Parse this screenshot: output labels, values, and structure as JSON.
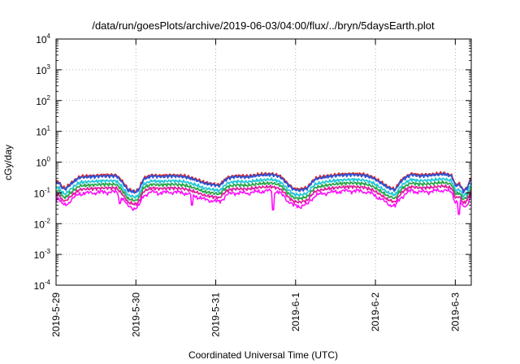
{
  "chart_data": {
    "type": "line",
    "title": "/data/run/goesPlots/archive/2019-06-03/04:00/flux/../bryn/5daysEarth.plot",
    "xlabel": "Coordinated Universal Time (UTC)",
    "ylabel": "cGy/day",
    "yscale": "log",
    "ylim": [
      0.0001,
      10000
    ],
    "y_ticks": [
      {
        "base": "10",
        "exp": "4",
        "value": 10000
      },
      {
        "base": "10",
        "exp": "3",
        "value": 1000
      },
      {
        "base": "10",
        "exp": "2",
        "value": 100
      },
      {
        "base": "10",
        "exp": "1",
        "value": 10
      },
      {
        "base": "10",
        "exp": "0",
        "value": 1
      },
      {
        "base": "10",
        "exp": "-1",
        "value": 0.1
      },
      {
        "base": "10",
        "exp": "-2",
        "value": 0.01
      },
      {
        "base": "10",
        "exp": "-3",
        "value": 0.001
      },
      {
        "base": "10",
        "exp": "-4",
        "value": 0.0001
      }
    ],
    "x_unit": "day",
    "xlim": [
      0,
      5.2
    ],
    "x_ticks": [
      {
        "label": "2019-5-29",
        "value": 0
      },
      {
        "label": "2019-5-30",
        "value": 1
      },
      {
        "label": "2019-5-31",
        "value": 2
      },
      {
        "label": "2019-6-1",
        "value": 3
      },
      {
        "label": "2019-6-2",
        "value": 4
      },
      {
        "label": "2019-6-3",
        "value": 5
      }
    ],
    "grid": true,
    "series": [
      {
        "color": "#e0201e",
        "scale": 1.0
      },
      {
        "color": "#2b55d8",
        "scale": 0.93
      },
      {
        "color": "#22c8d8",
        "scale": 0.65
      },
      {
        "color": "#2aa84a",
        "scale": 0.5
      },
      {
        "color": "#e020a0",
        "scale": 0.38
      },
      {
        "color": "#ff10ff",
        "scale": 0.3,
        "spiky": true
      }
    ],
    "shape": {
      "x": [
        0,
        0.03,
        0.07,
        0.12,
        0.2,
        0.3,
        0.45,
        0.6,
        0.75,
        0.85,
        0.9,
        0.95,
        1.0,
        1.05,
        1.1,
        1.2,
        1.3,
        1.45,
        1.6,
        1.75,
        1.85,
        1.95,
        2.05,
        2.15,
        2.25,
        2.4,
        2.55,
        2.7,
        2.8,
        2.9,
        2.97,
        3.05,
        3.15,
        3.25,
        3.4,
        3.55,
        3.7,
        3.85,
        3.95,
        4.05,
        4.15,
        4.25,
        4.35,
        4.45,
        4.55,
        4.7,
        4.85,
        4.95,
        5.0,
        5.05,
        5.1,
        5.15,
        5.2
      ],
      "y": [
        0.23,
        0.24,
        0.16,
        0.14,
        0.22,
        0.34,
        0.36,
        0.38,
        0.38,
        0.2,
        0.13,
        0.12,
        0.11,
        0.15,
        0.3,
        0.38,
        0.36,
        0.38,
        0.36,
        0.28,
        0.22,
        0.2,
        0.18,
        0.32,
        0.36,
        0.35,
        0.4,
        0.42,
        0.36,
        0.2,
        0.14,
        0.13,
        0.15,
        0.3,
        0.36,
        0.4,
        0.42,
        0.4,
        0.34,
        0.24,
        0.16,
        0.13,
        0.3,
        0.42,
        0.38,
        0.4,
        0.44,
        0.38,
        0.18,
        0.2,
        0.12,
        0.15,
        0.3
      ]
    },
    "dips": [
      {
        "x": 0.8,
        "y": 0.045
      },
      {
        "x": 1.7,
        "y": 0.04
      },
      {
        "x": 2.72,
        "y": 0.028
      },
      {
        "x": 3.05,
        "y": 0.035
      },
      {
        "x": 5.05,
        "y": 0.02
      }
    ]
  }
}
